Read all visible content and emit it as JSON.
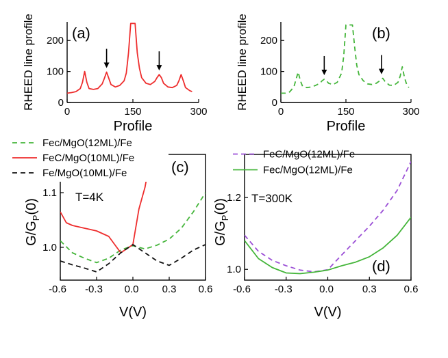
{
  "chart_data": [
    {
      "panel": "(a)",
      "type": "line",
      "xlabel": "Profile",
      "ylabel": "RHEED line profile",
      "xlim": [
        0,
        300
      ],
      "ylim": [
        0,
        260
      ],
      "xticks": [
        "0",
        "150",
        "300"
      ],
      "yticks": [
        "0",
        "100",
        "200"
      ],
      "color": "#ee2d2d",
      "dash": "solid",
      "x": [
        0,
        10,
        20,
        30,
        35,
        40,
        45,
        50,
        60,
        70,
        80,
        85,
        90,
        95,
        100,
        110,
        120,
        130,
        135,
        140,
        145,
        150,
        155,
        160,
        165,
        170,
        180,
        190,
        200,
        205,
        210,
        215,
        220,
        230,
        240,
        250,
        255,
        260,
        265,
        270,
        280,
        285
      ],
      "y": [
        30,
        32,
        35,
        45,
        65,
        100,
        65,
        45,
        42,
        45,
        60,
        78,
        98,
        78,
        58,
        50,
        55,
        70,
        95,
        160,
        255,
        255,
        255,
        160,
        110,
        80,
        62,
        58,
        68,
        80,
        90,
        80,
        62,
        50,
        48,
        55,
        70,
        90,
        70,
        48,
        38,
        35
      ],
      "arrows_at_x": [
        90,
        210
      ]
    },
    {
      "panel": "(b)",
      "type": "line",
      "xlabel": "Profile",
      "ylabel": "RHEED line profile",
      "xlim": [
        0,
        300
      ],
      "ylim": [
        0,
        260
      ],
      "xticks": [
        "0",
        "150",
        "300"
      ],
      "yticks": [
        "0",
        "100",
        "200"
      ],
      "color": "#44b53a",
      "dash": "dashed",
      "x": [
        0,
        10,
        20,
        30,
        35,
        40,
        45,
        50,
        60,
        70,
        80,
        90,
        95,
        100,
        105,
        110,
        120,
        130,
        140,
        145,
        150,
        155,
        160,
        165,
        170,
        175,
        180,
        190,
        200,
        210,
        220,
        230,
        235,
        240,
        250,
        260,
        270,
        275,
        280,
        285,
        290,
        295
      ],
      "y": [
        30,
        30,
        34,
        50,
        75,
        98,
        70,
        52,
        48,
        50,
        55,
        62,
        70,
        75,
        70,
        62,
        58,
        65,
        95,
        150,
        250,
        250,
        250,
        250,
        180,
        120,
        90,
        70,
        60,
        58,
        62,
        72,
        78,
        68,
        56,
        55,
        65,
        85,
        115,
        80,
        58,
        48
      ],
      "arrows_at_x": [
        100,
        232
      ]
    },
    {
      "panel": "(c)",
      "type": "line",
      "xlabel": "V(V)",
      "ylabel": "G/G",
      "ylabel_sub": "P",
      "ylabel_suffix": "(0)",
      "xlim": [
        -0.6,
        0.6
      ],
      "ylim": [
        0.94,
        1.17
      ],
      "xticks": [
        "-0.6",
        "-0.3",
        "0.0",
        "0.3",
        "0.6"
      ],
      "yticks": [
        "1.0",
        "1.1"
      ],
      "annotation": "T=4K",
      "legend_loc": "top-left",
      "series": [
        {
          "name": "Fec/MgO(12ML)/Fe",
          "color": "#44b53a",
          "dash": "dashed",
          "x": [
            -0.6,
            -0.5,
            -0.4,
            -0.3,
            -0.2,
            -0.1,
            0.0,
            0.1,
            0.2,
            0.3,
            0.4,
            0.5,
            0.6
          ],
          "y": [
            1.012,
            0.99,
            0.98,
            0.972,
            0.98,
            0.995,
            1.003,
            0.997,
            1.004,
            1.015,
            1.035,
            1.065,
            1.1
          ]
        },
        {
          "name": "FeC/MgO(10ML)/Fe",
          "color": "#ee2d2d",
          "dash": "solid",
          "x": [
            -0.6,
            -0.55,
            -0.5,
            -0.4,
            -0.3,
            -0.2,
            -0.1,
            0.0,
            0.05,
            0.1,
            0.15
          ],
          "y": [
            1.065,
            1.045,
            1.04,
            1.035,
            1.03,
            1.02,
            0.99,
            1.005,
            1.07,
            1.11,
            1.17
          ]
        },
        {
          "name": "Fe/MgO(10ML)/Fe",
          "color": "#111111",
          "dash": "dashed",
          "x": [
            -0.6,
            -0.5,
            -0.4,
            -0.3,
            -0.2,
            -0.1,
            0.0,
            0.1,
            0.2,
            0.3,
            0.4,
            0.5,
            0.6
          ],
          "y": [
            0.975,
            0.968,
            0.962,
            0.955,
            0.97,
            0.99,
            1.005,
            0.99,
            0.975,
            0.967,
            0.98,
            0.995,
            1.005
          ]
        }
      ]
    },
    {
      "panel": "(d)",
      "type": "line",
      "xlabel": "V(V)",
      "ylabel": "G/G",
      "ylabel_sub": "P",
      "ylabel_suffix": "(0)",
      "xlim": [
        -0.6,
        0.6
      ],
      "ylim": [
        0.97,
        1.32
      ],
      "xticks": [
        "-0.6",
        "-0.3",
        "0.0",
        "0.3",
        "0.6"
      ],
      "yticks": [
        "1.0",
        "1.2"
      ],
      "annotation": "T=300K",
      "legend_loc": "top",
      "series": [
        {
          "name": "FeC/MgO(12ML)/Fe",
          "color": "#9b4fd6",
          "dash": "dashed",
          "x": [
            -0.6,
            -0.5,
            -0.4,
            -0.3,
            -0.2,
            -0.1,
            0.0,
            0.1,
            0.2,
            0.3,
            0.4,
            0.5,
            0.6
          ],
          "y": [
            1.095,
            1.05,
            1.025,
            1.01,
            0.998,
            0.993,
            0.999,
            1.04,
            1.08,
            1.12,
            1.165,
            1.22,
            1.3
          ]
        },
        {
          "name": "Fec/MgO(12ML)/Fe",
          "color": "#44b53a",
          "dash": "solid",
          "x": [
            -0.6,
            -0.5,
            -0.4,
            -0.3,
            -0.2,
            -0.1,
            0.0,
            0.1,
            0.2,
            0.3,
            0.4,
            0.5,
            0.6
          ],
          "y": [
            1.08,
            1.03,
            1.005,
            0.99,
            0.988,
            0.992,
            0.998,
            1.01,
            1.02,
            1.035,
            1.06,
            1.095,
            1.145
          ]
        }
      ]
    }
  ]
}
